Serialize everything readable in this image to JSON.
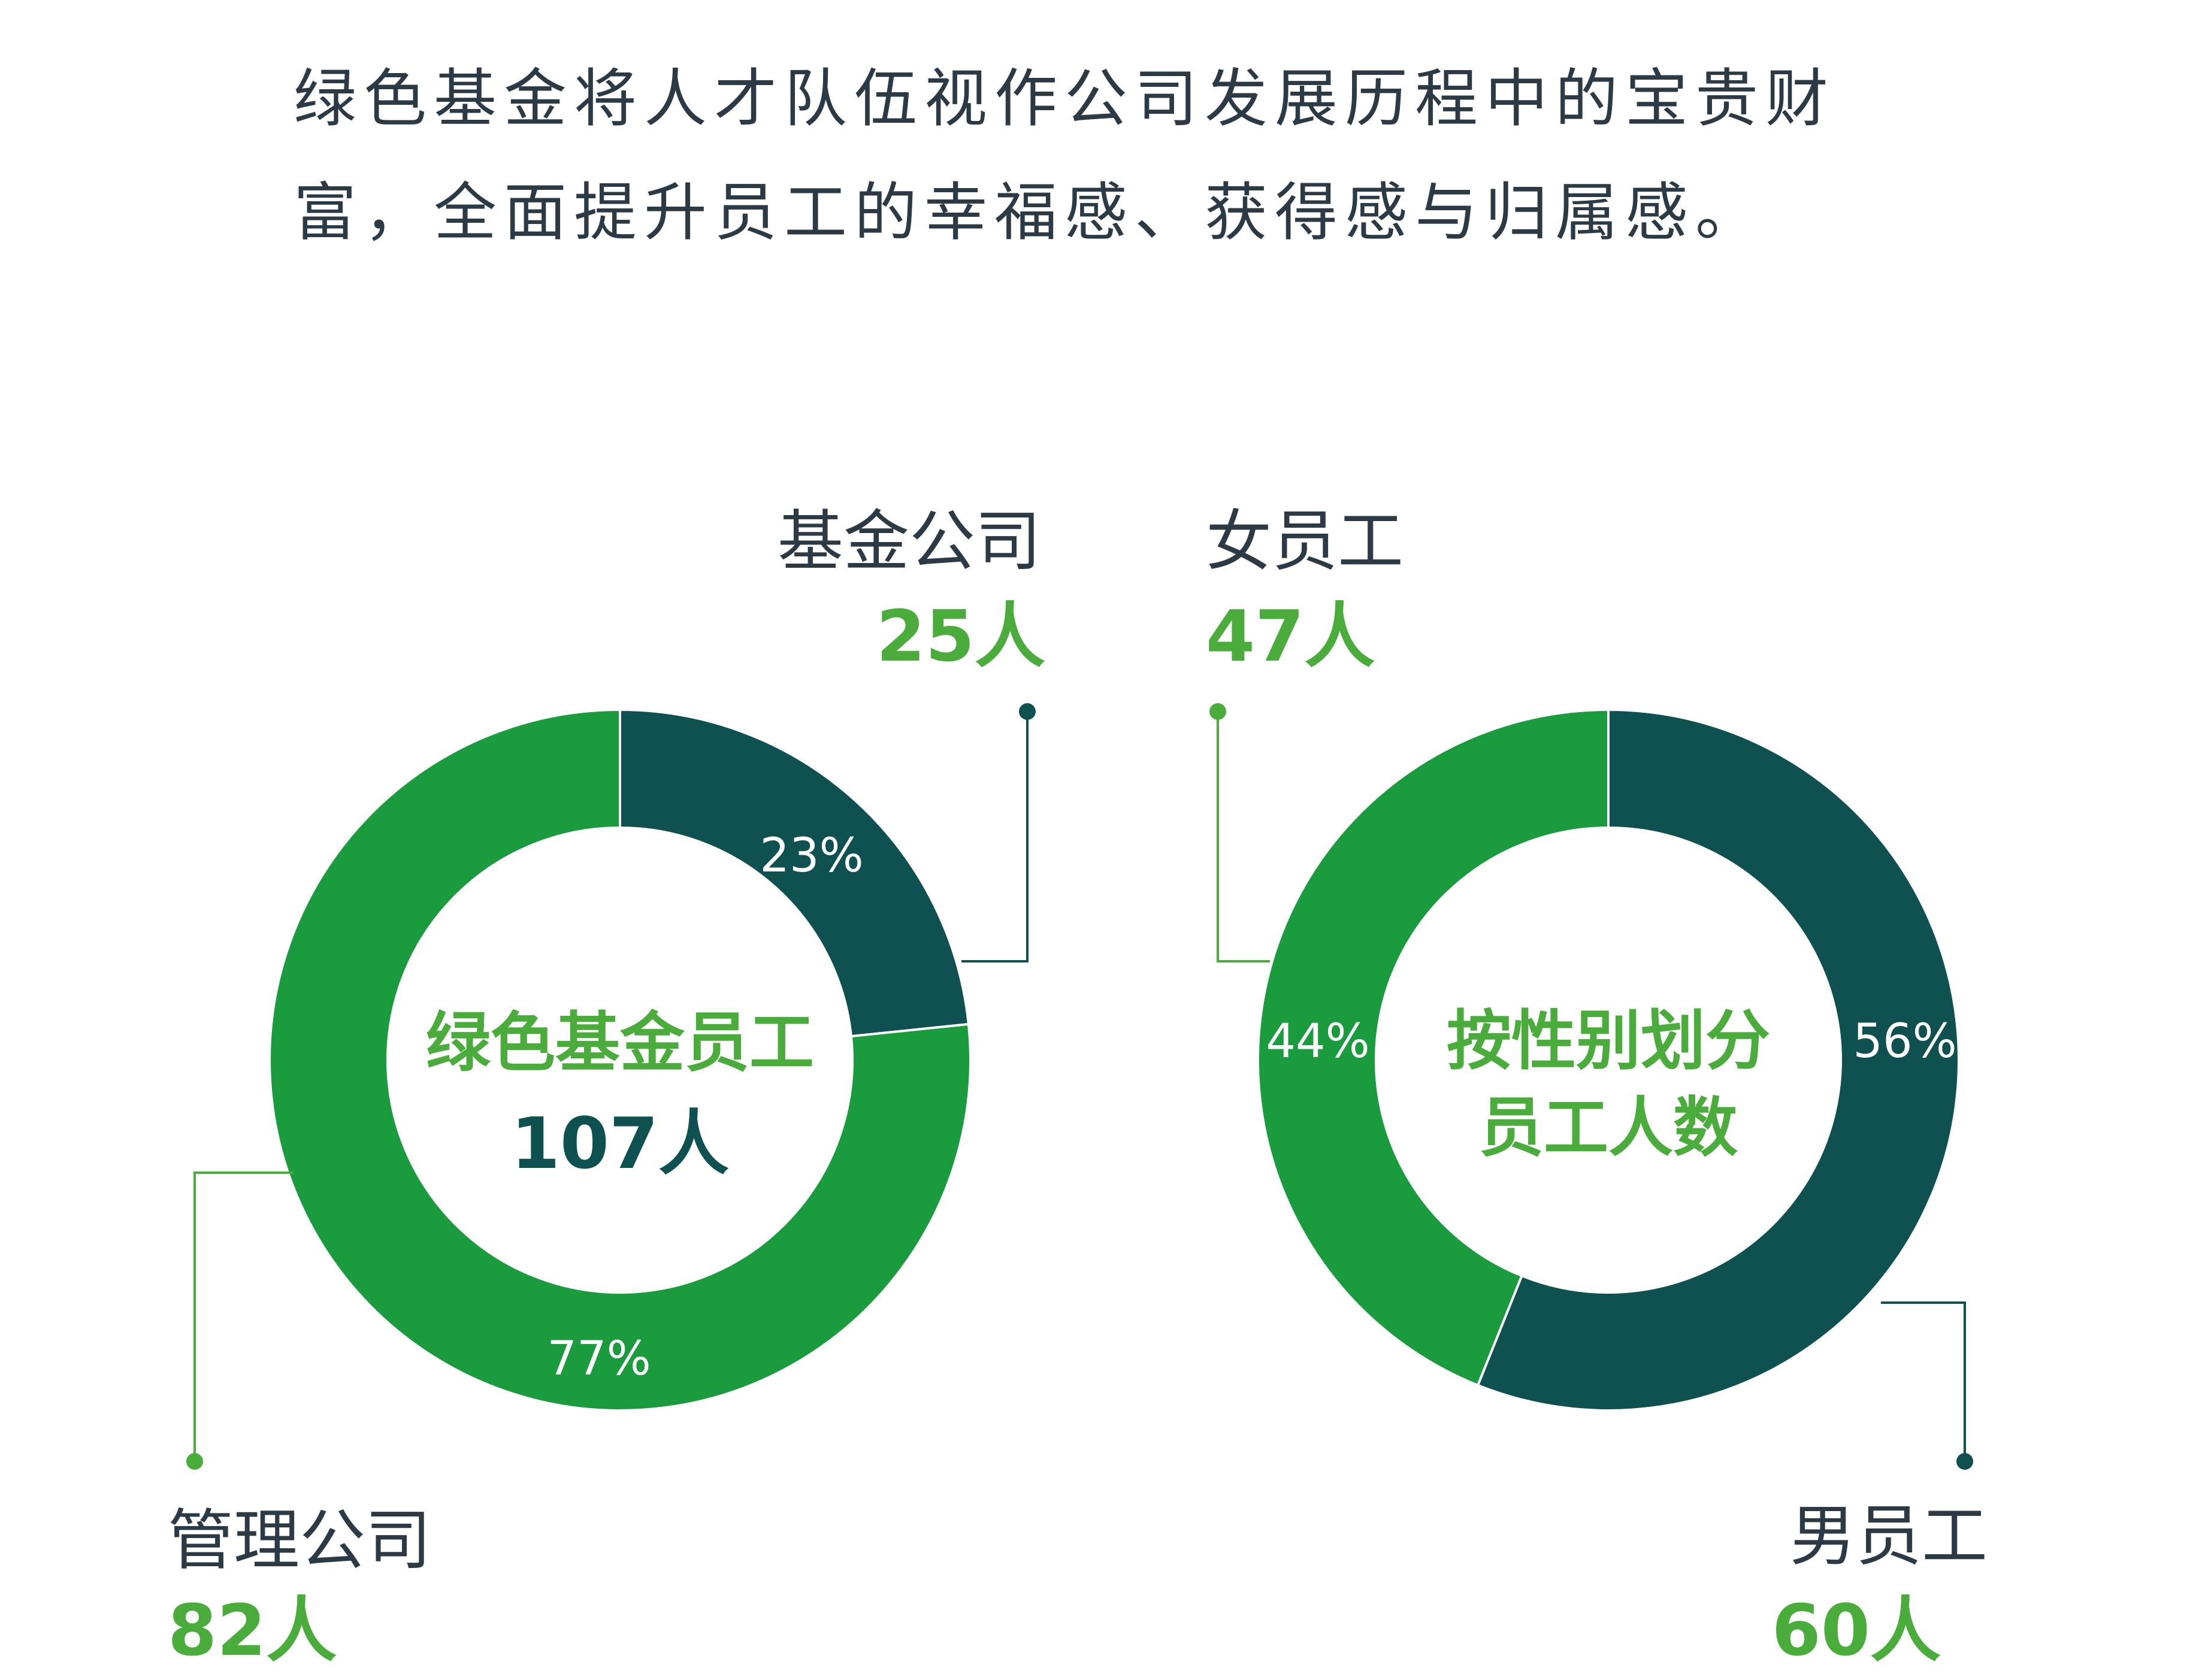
{
  "intro": {
    "line1": "绿色基金将人才队伍视作公司发展历程中的宝贵财",
    "line2": "富，全面提升员工的幸福感、获得感与归属感。"
  },
  "colors": {
    "light_green": "#1a9b3d",
    "dark_green": "#0f5050",
    "label_green": "#4aac3a",
    "text_dark": "#2b3a45"
  },
  "chart_data": [
    {
      "type": "pie",
      "variant": "donut",
      "center": {
        "title": "绿色基金员工",
        "value": "107人"
      },
      "slices": [
        {
          "name": "基金公司",
          "count_label": "25人",
          "value": 25,
          "percent_label": "23%",
          "color": "#0f5050",
          "dot_color": "#0f5050"
        },
        {
          "name": "管理公司",
          "count_label": "82人",
          "value": 82,
          "percent_label": "77%",
          "color": "#1a9b3d",
          "dot_color": "#4aac3a"
        }
      ]
    },
    {
      "type": "pie",
      "variant": "donut",
      "center": {
        "title_line1": "按性别划分",
        "title_line2": "员工人数"
      },
      "slices": [
        {
          "name": "男员工",
          "count_label": "60人",
          "value": 60,
          "percent_label": "56%",
          "color": "#0f5050",
          "dot_color": "#0f5050"
        },
        {
          "name": "女员工",
          "count_label": "47人",
          "value": 47,
          "percent_label": "44%",
          "color": "#1a9b3d",
          "dot_color": "#4aac3a"
        }
      ]
    }
  ]
}
